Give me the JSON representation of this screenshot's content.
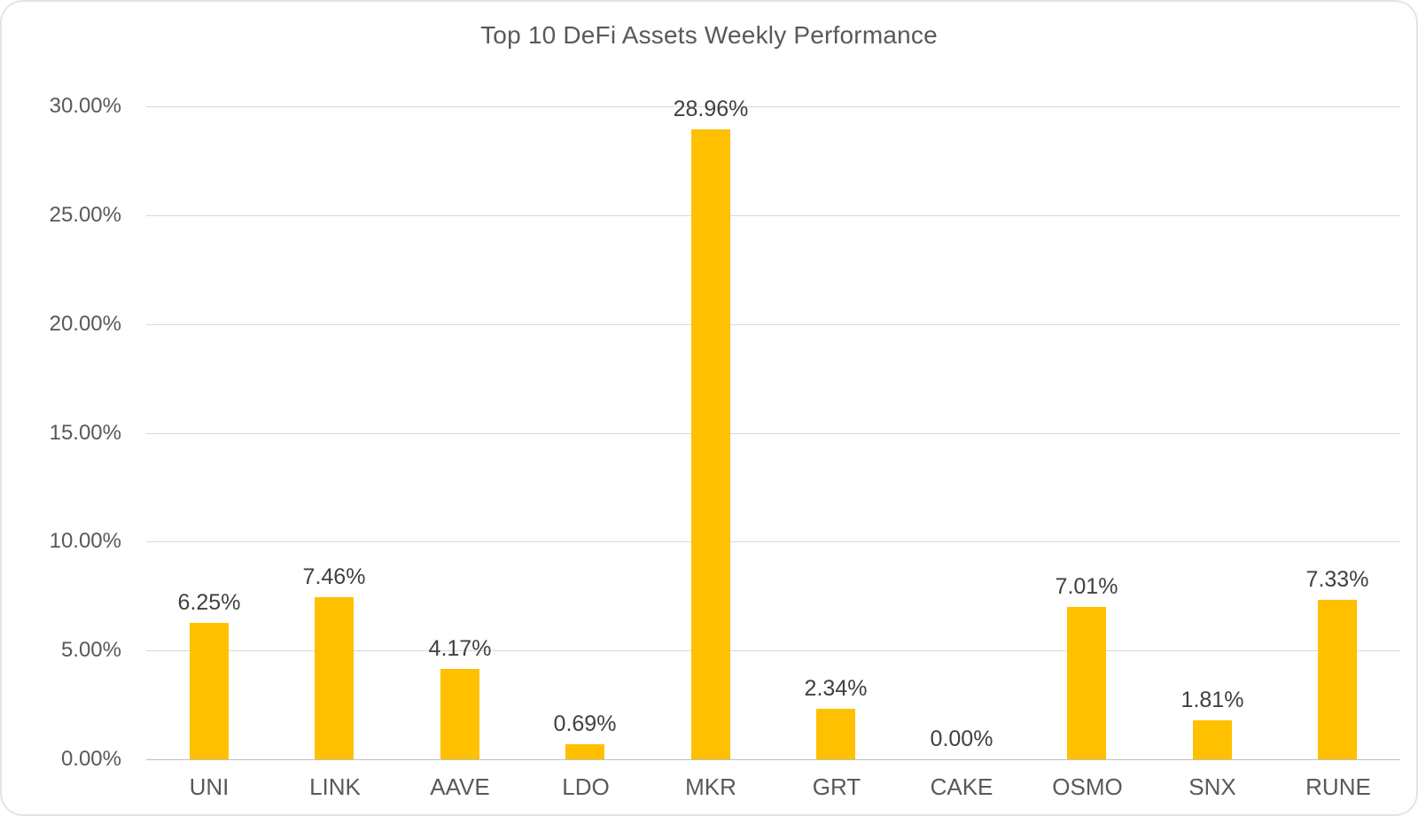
{
  "page": {
    "background_color": "#ffffff",
    "border_color": "#e4e4e4"
  },
  "chart_data": {
    "type": "bar",
    "title": "Top 10 DeFi Assets Weekly Performance",
    "categories": [
      "UNI",
      "LINK",
      "AAVE",
      "LDO",
      "MKR",
      "GRT",
      "CAKE",
      "OSMO",
      "SNX",
      "RUNE"
    ],
    "values": [
      6.25,
      7.46,
      4.17,
      0.69,
      28.96,
      2.34,
      0.0,
      7.01,
      1.81,
      7.33
    ],
    "data_labels": [
      "6.25%",
      "7.46%",
      "4.17%",
      "0.69%",
      "28.96%",
      "2.34%",
      "0.00%",
      "7.01%",
      "1.81%",
      "7.33%"
    ],
    "xlabel": "",
    "ylabel": "",
    "ylim": [
      0,
      30
    ],
    "y_ticks": [
      {
        "value": 0,
        "label": "0.00%"
      },
      {
        "value": 5,
        "label": "5.00%"
      },
      {
        "value": 10,
        "label": "10.00%"
      },
      {
        "value": 15,
        "label": "15.00%"
      },
      {
        "value": 20,
        "label": "20.00%"
      },
      {
        "value": 25,
        "label": "25.00%"
      },
      {
        "value": 30,
        "label": "30.00%"
      }
    ],
    "grid": true,
    "legend": "none",
    "bar_color": "#FFC000",
    "title_color": "#595959",
    "axis_label_color": "#595959",
    "data_label_color": "#404040",
    "gridline_color": "#D9D9D9",
    "axis_line_color": "#BFBFBF"
  }
}
